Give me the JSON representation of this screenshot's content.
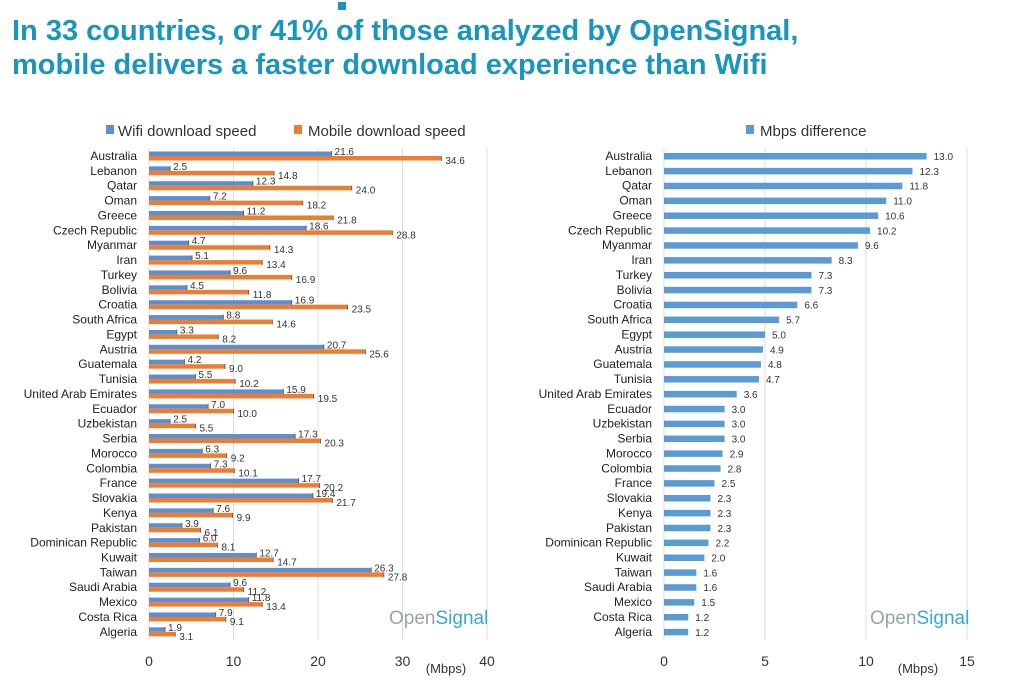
{
  "headline": {
    "line1": "In 33 countries, or 41% of those analyzed by OpenSignal,",
    "line2": "mobile delivers a faster download experience than Wifi"
  },
  "colors": {
    "wifi": "#5b8fd1",
    "mobile": "#ee7d31",
    "diff": "#5b9bd5",
    "headline": "#1a95c0"
  },
  "chart_data": [
    {
      "type": "bar",
      "orientation": "horizontal",
      "categories": [
        "Australia",
        "Lebanon",
        "Qatar",
        "Oman",
        "Greece",
        "Czech Republic",
        "Myanmar",
        "Iran",
        "Turkey",
        "Bolivia",
        "Croatia",
        "South Africa",
        "Egypt",
        "Austria",
        "Guatemala",
        "Tunisia",
        "United Arab Emirates",
        "Ecuador",
        "Uzbekistan",
        "Serbia",
        "Morocco",
        "Colombia",
        "France",
        "Slovakia",
        "Kenya",
        "Pakistan",
        "Dominican Republic",
        "Kuwait",
        "Taiwan",
        "Saudi Arabia",
        "Mexico",
        "Costa Rica",
        "Algeria"
      ],
      "series": [
        {
          "name": "Wifi download speed",
          "values": [
            21.6,
            2.5,
            12.3,
            7.2,
            11.2,
            18.6,
            4.7,
            5.1,
            9.6,
            4.5,
            16.9,
            8.8,
            3.3,
            20.7,
            4.2,
            5.5,
            15.9,
            7.0,
            2.5,
            17.3,
            6.3,
            7.3,
            17.7,
            19.4,
            7.6,
            3.9,
            6.0,
            12.7,
            26.3,
            9.6,
            11.8,
            7.9,
            1.9
          ]
        },
        {
          "name": "Mobile download speed",
          "values": [
            34.6,
            14.8,
            24.0,
            18.2,
            21.8,
            28.8,
            14.3,
            13.4,
            16.9,
            11.8,
            23.5,
            14.6,
            8.2,
            25.6,
            9.0,
            10.2,
            19.5,
            10.0,
            5.5,
            20.3,
            9.2,
            10.1,
            20.2,
            21.7,
            9.9,
            6.1,
            8.1,
            14.7,
            27.8,
            11.2,
            13.4,
            9.1,
            3.1
          ]
        }
      ],
      "value_labels": {
        "wifi": [
          "21.6",
          "2.5",
          "12.3",
          "7.2",
          "11.2",
          "18.6",
          "4.7",
          "5.1",
          "9.6",
          "4.5",
          "16.9",
          "8.8",
          "3.3",
          "20.7",
          "4.2",
          "5.5",
          "15.9",
          "7.0",
          "2.5",
          "17.3",
          "6.3",
          "7.3",
          "17.7",
          "19.4",
          "7.6",
          "3.9",
          "6.0",
          "12.7",
          "26.3",
          "9.6",
          "11.8",
          "7.9",
          "1.9"
        ],
        "mobile": [
          "34.6",
          "14.8",
          "24.0",
          "18.2",
          "21.8",
          "28.8",
          "14.3",
          "13.4",
          "16.9",
          "11.8",
          "23.5",
          "14.6",
          "8.2",
          "25.6",
          "9.0",
          "10.2",
          "19.5",
          "10.0",
          "5.5",
          "20.3",
          "9.2",
          "10.1",
          "20.2",
          "21.7",
          "9.9",
          "6.1",
          "8.1",
          "14.7",
          "27.8",
          "11.2",
          "13.4",
          "9.1",
          "3.1"
        ]
      },
      "xlim": [
        0,
        40
      ],
      "xticks": [
        "0",
        "10",
        "20",
        "30",
        "40"
      ],
      "unit_label": "(Mbps)",
      "legend_position": "top",
      "grid": true,
      "watermark": {
        "part1": "Open",
        "part2": "Signal"
      }
    },
    {
      "type": "bar",
      "orientation": "horizontal",
      "categories": [
        "Australia",
        "Lebanon",
        "Qatar",
        "Oman",
        "Greece",
        "Czech Republic",
        "Myanmar",
        "Iran",
        "Turkey",
        "Bolivia",
        "Croatia",
        "South Africa",
        "Egypt",
        "Austria",
        "Guatemala",
        "Tunisia",
        "United Arab Emirates",
        "Ecuador",
        "Uzbekistan",
        "Serbia",
        "Morocco",
        "Colombia",
        "France",
        "Slovakia",
        "Kenya",
        "Pakistan",
        "Dominican Republic",
        "Kuwait",
        "Taiwan",
        "Saudi Arabia",
        "Mexico",
        "Costa Rica",
        "Algeria"
      ],
      "series": [
        {
          "name": "Mbps difference",
          "values": [
            13.0,
            12.3,
            11.8,
            11.0,
            10.6,
            10.2,
            9.6,
            8.3,
            7.3,
            7.3,
            6.6,
            5.7,
            5.0,
            4.9,
            4.8,
            4.7,
            3.6,
            3.0,
            3.0,
            3.0,
            2.9,
            2.8,
            2.5,
            2.3,
            2.3,
            2.3,
            2.2,
            2.0,
            1.6,
            1.6,
            1.5,
            1.2,
            1.2
          ]
        }
      ],
      "value_labels": [
        "13.0",
        "12.3",
        "11.8",
        "11.0",
        "10.6",
        "10.2",
        "9.6",
        "8.3",
        "7.3",
        "7.3",
        "6.6",
        "5.7",
        "5.0",
        "4.9",
        "4.8",
        "4.7",
        "3.6",
        "3.0",
        "3.0",
        "3.0",
        "2.9",
        "2.8",
        "2.5",
        "2.3",
        "2.3",
        "2.3",
        "2.2",
        "2.0",
        "1.6",
        "1.6",
        "1.5",
        "1.2",
        "1.2"
      ],
      "xlim": [
        0,
        15
      ],
      "xticks": [
        "0",
        "5",
        "10",
        "15"
      ],
      "unit_label": "(Mbps)",
      "legend_position": "top",
      "grid": true,
      "watermark": {
        "part1": "Open",
        "part2": "Signal"
      }
    }
  ]
}
